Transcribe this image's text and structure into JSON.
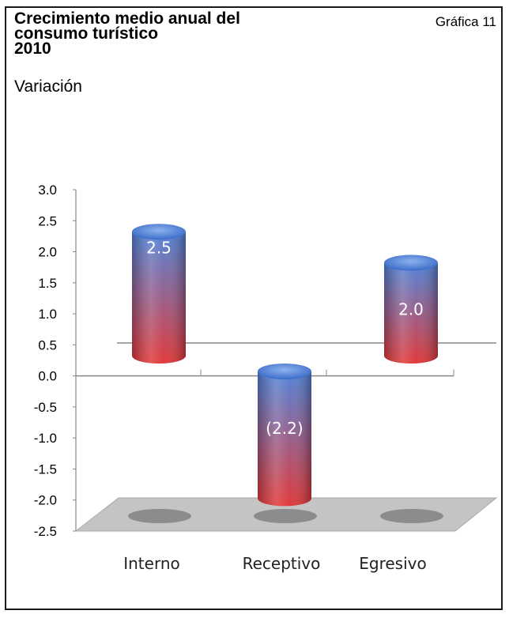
{
  "header": {
    "title_lines": [
      "Crecimiento medio anual del",
      "consumo turístico",
      "2010"
    ],
    "subtitle": "Variación",
    "figure_label": "Gráfica 11"
  },
  "colors": {
    "bar_top": "#4a7fd8",
    "bar_bottom": "#e03030",
    "floor": "#c4c4c4",
    "axis": "#888888"
  },
  "chart_data": {
    "type": "bar",
    "title": "Crecimiento medio anual del consumo turístico 2010",
    "subtitle": "Variación",
    "categories": [
      "Interno",
      "Receptivo",
      "Egresivo"
    ],
    "values": [
      2.5,
      -2.2,
      2.0
    ],
    "data_labels": [
      "2.5",
      "(2.2)",
      "2.0"
    ],
    "y_ticks": [
      "3.0",
      "2.5",
      "2.0",
      "1.5",
      "1.0",
      "0.5",
      "0.0",
      "-0.5",
      "-1.0",
      "-1.5",
      "-2.0",
      "-2.5"
    ],
    "ylim": [
      -2.5,
      3.0
    ],
    "grid": false,
    "legend": "none",
    "style": "3d-cylinder"
  }
}
